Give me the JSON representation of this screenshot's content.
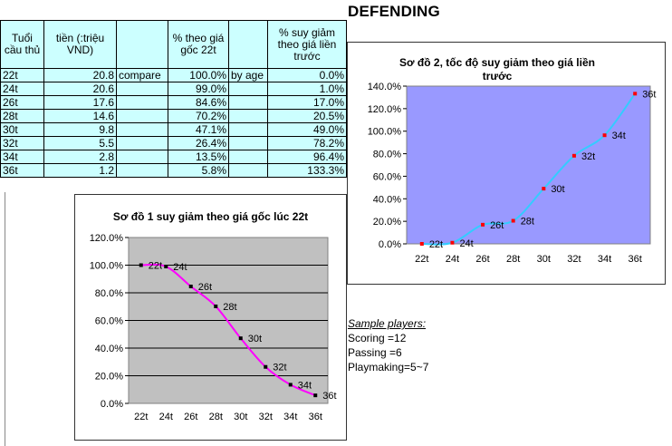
{
  "title": "DEFENDING",
  "table": {
    "headers": [
      "Tuổi cầu thủ",
      "tiền (:triệu VND)",
      "",
      "% theo giá gốc 22t",
      "",
      "% suy giảm theo giá liền trước"
    ],
    "rows": [
      {
        "age": "22t",
        "money": "20.8",
        "c": "compare",
        "pct": "100.0%",
        "e": "by age",
        "drop": "0.0%"
      },
      {
        "age": "24t",
        "money": "20.6",
        "c": "",
        "pct": "99.0%",
        "e": "",
        "drop": "1.0%"
      },
      {
        "age": "26t",
        "money": "17.6",
        "c": "",
        "pct": "84.6%",
        "e": "",
        "drop": "17.0%"
      },
      {
        "age": "28t",
        "money": "14.6",
        "c": "",
        "pct": "70.2%",
        "e": "",
        "drop": "20.5%"
      },
      {
        "age": "30t",
        "money": "9.8",
        "c": "",
        "pct": "47.1%",
        "e": "",
        "drop": "49.0%"
      },
      {
        "age": "32t",
        "money": "5.5",
        "c": "",
        "pct": "26.4%",
        "e": "",
        "drop": "78.2%"
      },
      {
        "age": "34t",
        "money": "2.8",
        "c": "",
        "pct": "13.5%",
        "e": "",
        "drop": "96.4%"
      },
      {
        "age": "36t",
        "money": "1.2",
        "c": "",
        "pct": "5.8%",
        "e": "",
        "drop": "133.3%"
      }
    ]
  },
  "samples": {
    "heading": "Sample players:",
    "lines": [
      "Scoring =12",
      "Passing =6",
      "Playmaking=5~7"
    ]
  },
  "chart_data": [
    {
      "type": "line",
      "title": "Sơ đồ 1 suy giảm theo giá gốc lúc 22t",
      "categories": [
        "22t",
        "24t",
        "26t",
        "28t",
        "30t",
        "32t",
        "34t",
        "36t"
      ],
      "values": [
        100.0,
        99.0,
        84.6,
        70.2,
        47.1,
        26.4,
        13.5,
        5.8
      ],
      "point_labels": [
        "22t",
        "24t",
        "26t",
        "28t",
        "30t",
        "32t",
        "34t",
        "36t"
      ],
      "ylim": [
        0,
        120
      ],
      "yticks": [
        "0.0%",
        "20.0%",
        "40.0%",
        "60.0%",
        "80.0%",
        "100.0%",
        "120.0%"
      ],
      "grid": true,
      "colors": {
        "line": "#ff00ff",
        "marker": "#000000",
        "plot_bg": "#c0c0c0"
      }
    },
    {
      "type": "line",
      "title": "Sơ đồ 2, tốc độ suy giảm theo giá liền trước",
      "categories": [
        "22t",
        "24t",
        "26t",
        "28t",
        "30t",
        "32t",
        "34t",
        "36t"
      ],
      "values": [
        0.0,
        1.0,
        17.0,
        20.5,
        49.0,
        78.2,
        96.4,
        133.3
      ],
      "point_labels": [
        "22t",
        "24t",
        "26t",
        "28t",
        "30t",
        "32t",
        "34t",
        "36t"
      ],
      "ylim": [
        0,
        140
      ],
      "yticks": [
        "0.0%",
        "20.0%",
        "40.0%",
        "60.0%",
        "80.0%",
        "100.0%",
        "120.0%",
        "140.0%"
      ],
      "grid": false,
      "colors": {
        "line": "#33ccff",
        "marker": "#ff0000",
        "plot_bg": "#9999ff"
      }
    }
  ]
}
